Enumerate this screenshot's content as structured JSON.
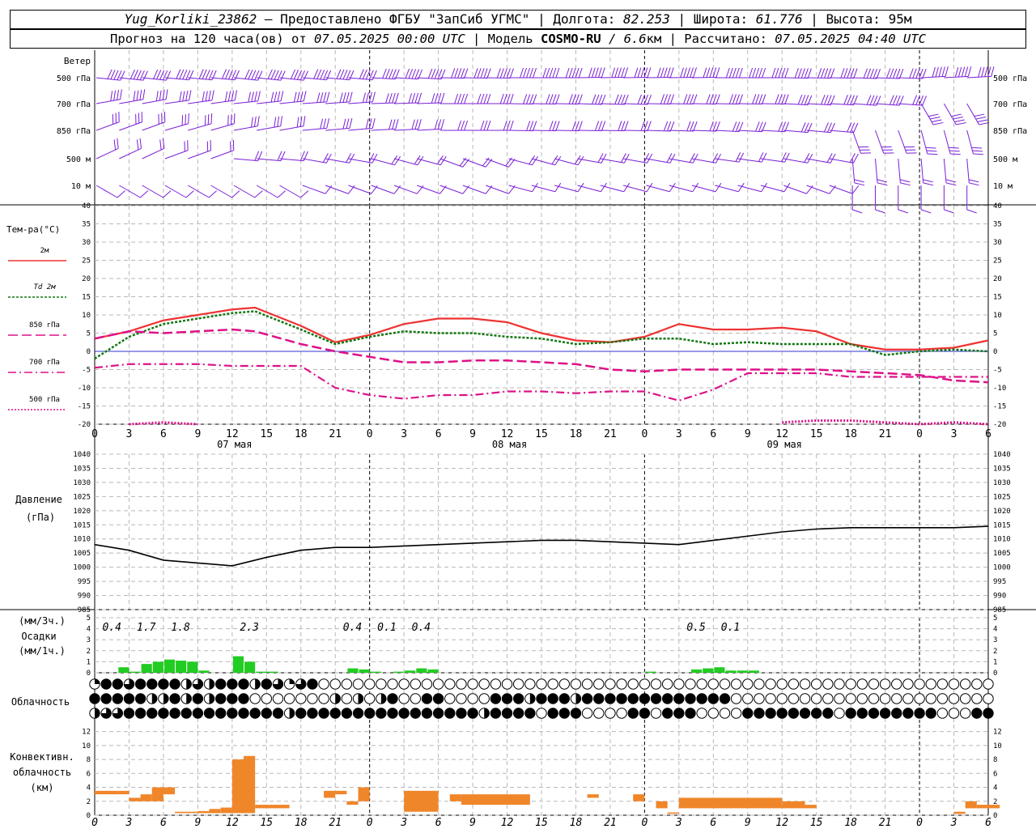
{
  "header": {
    "station": "Yug_Korliki_23862",
    "provider": " – Предоставлено ФГБУ \"ЗапСиб УГМС\" | Долгота: ",
    "lon": "82.253",
    "lat_label": " | Широта: ",
    "lat": "61.776",
    "alt_label": " | Высота: ",
    "alt": "95м",
    "forecast_label": "Прогноз на 120 часа(ов) от ",
    "forecast_from": "07.05.2025 00:00 UTC",
    "model_label": "  | Модель ",
    "model": "COSMO-RU",
    "model_res": " / 6.6",
    "model_res_unit": "км",
    "calc_label": " | Рассчитано: ",
    "calc_time": "07.05.2025 04:40 UTC"
  },
  "labels": {
    "wind": "Ветер",
    "wind_levels": [
      "500 гПа",
      "700 гПа",
      "850 гПа",
      "500  м",
      "10   м"
    ],
    "temp_title": "Тем-ра(°C)",
    "legend": [
      {
        "label": "2м",
        "color": "#ee3333",
        "style": "solid"
      },
      {
        "label": "Td  2м",
        "color": "#117711",
        "style": "dotted"
      },
      {
        "label": "850 гПа",
        "color": "#dd1188",
        "style": "dash"
      },
      {
        "label": "700 гПа",
        "color": "#dd1188",
        "style": "dashdot"
      },
      {
        "label": "500 гПа",
        "color": "#dd1188",
        "style": "dot"
      }
    ],
    "pressure_title": [
      "Давление",
      "(гПа)"
    ],
    "precip_title": [
      "(мм/3ч.)",
      "Осадки",
      "(мм/1ч.)"
    ],
    "cloud_title": "Облачность",
    "conv_title": [
      "Конвективн.",
      "облачность",
      "(км)"
    ]
  },
  "colors": {
    "wind_barb": "#7a1fd6",
    "temp_2m": "#ee3333",
    "dew_point": "#117711",
    "upper": "#dd1188",
    "pressure": "#000000",
    "precip": "#22cc22",
    "convective": "#f0862a",
    "zero_line": "#3333cc"
  },
  "axis": {
    "hour_ticks": [
      "0",
      "3",
      "6",
      "9",
      "12",
      "15",
      "18",
      "21",
      "0",
      "3",
      "6",
      "9",
      "12",
      "15",
      "18",
      "21",
      "0",
      "3",
      "6",
      "9",
      "12",
      "15",
      "18",
      "21",
      "0",
      "3",
      "6"
    ],
    "dates": [
      "07 мая",
      "08 мая",
      "09 мая"
    ]
  },
  "chart_data": [
    {
      "type": "line",
      "title": "Тем-ра(°C)",
      "ylim": [
        -20,
        40
      ],
      "yticks": [
        -20,
        -15,
        -10,
        -5,
        0,
        5,
        10,
        15,
        20,
        25,
        30,
        35,
        40
      ],
      "x_hours": [
        0,
        3,
        6,
        9,
        12,
        14,
        18,
        21,
        24,
        27,
        30,
        33,
        36,
        39,
        42,
        45,
        48,
        51,
        54,
        57,
        60,
        63,
        66,
        69,
        72,
        75,
        78
      ],
      "series": [
        {
          "name": "2м",
          "values": [
            3.5,
            5.5,
            8.5,
            10,
            11.5,
            12,
            7,
            2.5,
            4.5,
            7.5,
            9,
            9,
            8,
            5,
            3,
            2.5,
            4,
            7.5,
            6,
            6,
            6.5,
            5.5,
            2,
            0.5,
            0.5,
            1,
            3
          ]
        },
        {
          "name": "Td  2м",
          "values": [
            -2,
            4,
            7.5,
            9,
            10.5,
            11,
            6,
            2,
            4,
            5.5,
            5,
            5,
            4,
            3.5,
            2,
            2.5,
            3.5,
            3.5,
            2,
            2.5,
            2,
            2,
            2,
            -1,
            0,
            0.5,
            0
          ]
        },
        {
          "name": "850 гПа",
          "values": [
            3.5,
            5.5,
            5,
            5.5,
            6,
            5.5,
            2,
            0,
            -1.5,
            -3,
            -3,
            -2.5,
            -2.5,
            -3,
            -3.5,
            -5,
            -5.5,
            -5,
            -5,
            -5,
            -5,
            -5,
            -5.5,
            -6,
            -6.5,
            -8,
            -8.5
          ]
        },
        {
          "name": "700 гПа",
          "values": [
            -4.5,
            -3.5,
            -3.5,
            -3.5,
            -4,
            -4,
            -4,
            -10,
            -12,
            -13,
            -12,
            -12,
            -11,
            -11,
            -11.5,
            -11,
            -11,
            -13.5,
            -10.5,
            -6,
            -6,
            -6,
            -7,
            -7,
            -7,
            -7,
            -7
          ]
        },
        {
          "name": "500 гПа",
          "values": [
            null,
            -20,
            -19.5,
            -20,
            null,
            null,
            null,
            null,
            null,
            null,
            null,
            null,
            null,
            null,
            null,
            null,
            null,
            null,
            null,
            null,
            -19.5,
            -19,
            -19,
            -19.5,
            -20,
            -19.5,
            -20
          ]
        }
      ]
    },
    {
      "type": "line",
      "title": "Давление",
      "ylabel": "(гПа)",
      "ylim": [
        985,
        1040
      ],
      "yticks": [
        985,
        990,
        995,
        1000,
        1005,
        1010,
        1015,
        1020,
        1025,
        1030,
        1035,
        1040
      ],
      "x_hours": [
        0,
        3,
        6,
        9,
        12,
        15,
        18,
        21,
        24,
        27,
        30,
        33,
        36,
        39,
        42,
        45,
        48,
        51,
        54,
        57,
        60,
        63,
        66,
        69,
        72,
        75,
        78
      ],
      "series": [
        {
          "name": "Давление",
          "values": [
            1008,
            1006,
            1002.5,
            1001.5,
            1000.5,
            1003.5,
            1006,
            1007,
            1007,
            1007.5,
            1008,
            1008.5,
            1009,
            1009.5,
            1009.5,
            1009,
            1008.5,
            1008,
            1009.5,
            1011,
            1012.5,
            1013.5,
            1014,
            1014,
            1014,
            1014,
            1014.5
          ]
        }
      ]
    },
    {
      "type": "bar",
      "title": "Осадки",
      "ylim": [
        0,
        5
      ],
      "yticks": [
        0,
        1,
        2,
        3,
        4,
        5
      ],
      "labels_3h": [
        {
          "hour": 1.5,
          "text": "0.4"
        },
        {
          "hour": 4.5,
          "text": "1.7"
        },
        {
          "hour": 7.5,
          "text": "1.8"
        },
        {
          "hour": 13.5,
          "text": "2.3"
        },
        {
          "hour": 22.5,
          "text": "0.4"
        },
        {
          "hour": 25.5,
          "text": "0.1"
        },
        {
          "hour": 28.5,
          "text": "0.4"
        },
        {
          "hour": 52.5,
          "text": "0.5"
        },
        {
          "hour": 55.5,
          "text": "0.1"
        }
      ],
      "hours": [
        2,
        3,
        4,
        5,
        6,
        7,
        8,
        9,
        12,
        13,
        14,
        15,
        22,
        23,
        24,
        26,
        27,
        28,
        29,
        48,
        52,
        53,
        54,
        55,
        56,
        57
      ],
      "values": [
        0.5,
        0.1,
        0.8,
        1.0,
        1.2,
        1.1,
        1.0,
        0.2,
        1.5,
        1.0,
        0.1,
        0.1,
        0.4,
        0.3,
        0.1,
        0.1,
        0.2,
        0.4,
        0.3,
        0.1,
        0.3,
        0.4,
        0.5,
        0.2,
        0.2,
        0.2
      ]
    },
    {
      "type": "table",
      "title": "Облачность",
      "hours_count": 79,
      "rows": [
        "q4434444h3h444h43q34000000000000000000000000000000000000000000000000000000000000",
        "44444hh4h4h4440000000h0h0h400440000444h444h4444444444444000000000000000000000000",
        "h3344444444444444h4444444444444444h4444044400004404440000444444440444444440004444"
      ]
    },
    {
      "type": "bar",
      "title": "Конвективн. облачность",
      "ylabel": "(км)",
      "ylim": [
        0,
        13
      ],
      "yticks": [
        0,
        2,
        4,
        6,
        8,
        10,
        12
      ],
      "segments": [
        {
          "from": 0,
          "to": 2,
          "base": 3,
          "top": 3.5
        },
        {
          "from": 2,
          "to": 3,
          "base": 3,
          "top": 3.5
        },
        {
          "from": 3,
          "to": 4,
          "base": 2,
          "top": 2.5
        },
        {
          "from": 4,
          "to": 5,
          "base": 2,
          "top": 3
        },
        {
          "from": 5,
          "to": 6,
          "base": 2,
          "top": 4
        },
        {
          "from": 6,
          "to": 7,
          "base": 3,
          "top": 4
        },
        {
          "from": 7,
          "to": 9,
          "base": 0.3,
          "top": 0.5
        },
        {
          "from": 9,
          "to": 10,
          "base": 0.3,
          "top": 0.6
        },
        {
          "from": 10,
          "to": 11,
          "base": 0.3,
          "top": 0.9
        },
        {
          "from": 11,
          "to": 12,
          "base": 0.3,
          "top": 1.1
        },
        {
          "from": 12,
          "to": 13,
          "base": 0.3,
          "top": 8
        },
        {
          "from": 13,
          "to": 14,
          "base": 0.3,
          "top": 8.5
        },
        {
          "from": 14,
          "to": 17,
          "base": 1,
          "top": 1.5
        },
        {
          "from": 20,
          "to": 21,
          "base": 2.5,
          "top": 3.5
        },
        {
          "from": 21,
          "to": 22,
          "base": 3,
          "top": 3.5
        },
        {
          "from": 22,
          "to": 23,
          "base": 1.5,
          "top": 2
        },
        {
          "from": 23,
          "to": 24,
          "base": 2,
          "top": 4
        },
        {
          "from": 27,
          "to": 30,
          "base": 0.5,
          "top": 3.5
        },
        {
          "from": 31,
          "to": 32,
          "base": 2,
          "top": 3
        },
        {
          "from": 32,
          "to": 38,
          "base": 1.5,
          "top": 3
        },
        {
          "from": 43,
          "to": 44,
          "base": 2.5,
          "top": 3
        },
        {
          "from": 47,
          "to": 48,
          "base": 2,
          "top": 3
        },
        {
          "from": 49,
          "to": 50,
          "base": 1,
          "top": 2
        },
        {
          "from": 50,
          "to": 51,
          "base": 0.2,
          "top": 0.4
        },
        {
          "from": 51,
          "to": 60,
          "base": 1,
          "top": 2.5
        },
        {
          "from": 60,
          "to": 62,
          "base": 1,
          "top": 2
        },
        {
          "from": 62,
          "to": 63,
          "base": 1,
          "top": 1.5
        },
        {
          "from": 75,
          "to": 76,
          "base": 0.2,
          "top": 0.5
        },
        {
          "from": 76,
          "to": 77,
          "base": 1,
          "top": 2
        },
        {
          "from": 77,
          "to": 79,
          "base": 1,
          "top": 1.5
        }
      ]
    }
  ]
}
